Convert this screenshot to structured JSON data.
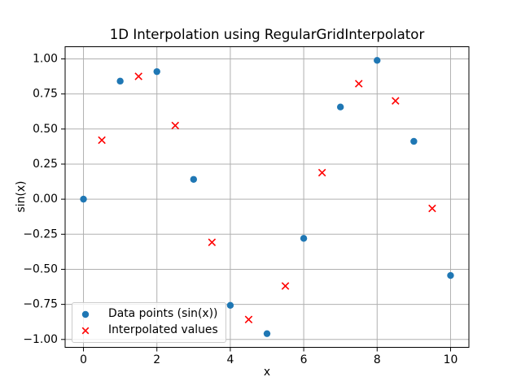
{
  "chart_data": {
    "type": "scatter",
    "title": "1D Interpolation using RegularGridInterpolator",
    "xlabel": "x",
    "ylabel": "sin(x)",
    "xlim": [
      -0.5,
      10.5
    ],
    "ylim": [
      -1.0563,
      1.0868
    ],
    "x_ticks": [
      0,
      2,
      4,
      6,
      8,
      10
    ],
    "x_tick_labels": [
      "0",
      "2",
      "4",
      "6",
      "8",
      "10"
    ],
    "y_ticks": [
      -1.0,
      -0.75,
      -0.5,
      -0.25,
      0.0,
      0.25,
      0.5,
      0.75,
      1.0
    ],
    "y_tick_labels": [
      "−1.00",
      "−0.75",
      "−0.50",
      "−0.25",
      "0.00",
      "0.25",
      "0.50",
      "0.75",
      "1.00"
    ],
    "grid": true,
    "legend_position": "lower left",
    "colors": {
      "grid": "#b0b0b0",
      "spine": "#000000",
      "text": "#000000",
      "background": "#ffffff",
      "data_points": "#1f77b4",
      "interpolated": "#ff0000"
    },
    "series": [
      {
        "name": "Data points (sin(x))",
        "marker": "circle",
        "color": "#1f77b4",
        "x": [
          0,
          1,
          2,
          3,
          4,
          5,
          6,
          7,
          8,
          9,
          10
        ],
        "y": [
          0.0,
          0.8415,
          0.9093,
          0.1411,
          -0.7568,
          -0.9589,
          -0.2794,
          0.657,
          0.9894,
          0.4121,
          -0.544
        ]
      },
      {
        "name": "Interpolated values",
        "marker": "x",
        "color": "#ff0000",
        "x": [
          0.5,
          1.5,
          2.5,
          3.5,
          4.5,
          5.5,
          6.5,
          7.5,
          8.5,
          9.5
        ],
        "y": [
          0.4207,
          0.8754,
          0.5252,
          -0.3079,
          -0.8579,
          -0.6192,
          0.1888,
          0.8232,
          0.7007,
          -0.066
        ]
      }
    ]
  }
}
